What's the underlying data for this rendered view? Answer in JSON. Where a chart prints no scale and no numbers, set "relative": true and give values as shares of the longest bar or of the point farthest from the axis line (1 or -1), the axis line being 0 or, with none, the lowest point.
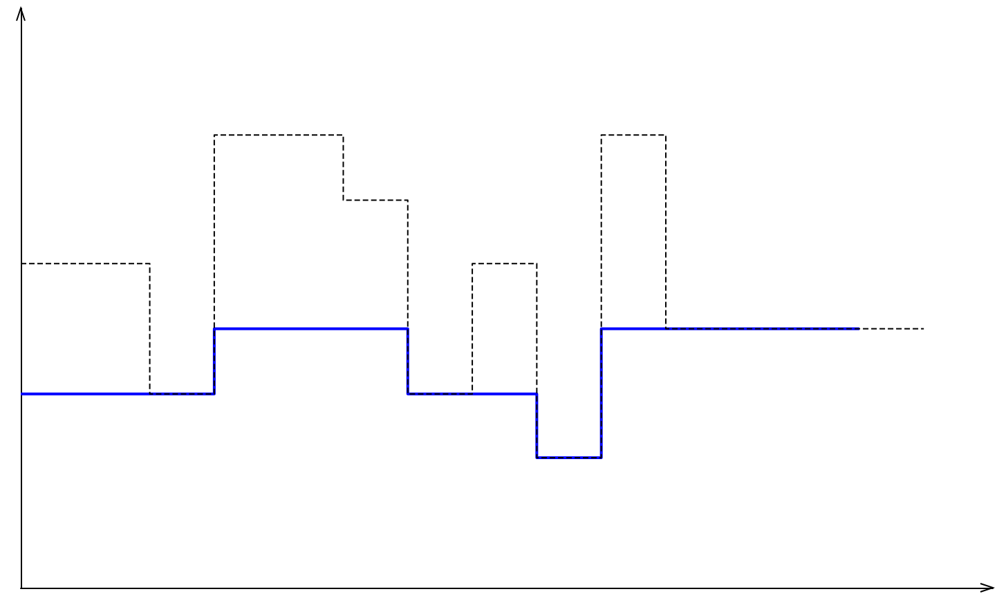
{
  "chart_data": {
    "type": "step",
    "relative": true,
    "categories": [
      null,
      null,
      null,
      null,
      null,
      null,
      null,
      null,
      null,
      null,
      null,
      null,
      null,
      null,
      null
    ],
    "series": [
      {
        "color": "#000000",
        "line_style": "dashed",
        "values": [
          0.716,
          0.716,
          0.428,
          1,
          1,
          0.856,
          0.428,
          0.716,
          0.287,
          1,
          0.572,
          0.572,
          0.572,
          0.572,
          0.572
        ]
      },
      {
        "color": "#0000ff",
        "line_style": "solid",
        "values": [
          0.428,
          0.428,
          0.428,
          0.572,
          0.572,
          0.572,
          0.428,
          0.428,
          0.287,
          0.572,
          0.572,
          0.572,
          0.572,
          0.572,
          null
        ]
      }
    ],
    "grid": false,
    "marker": "none"
  }
}
